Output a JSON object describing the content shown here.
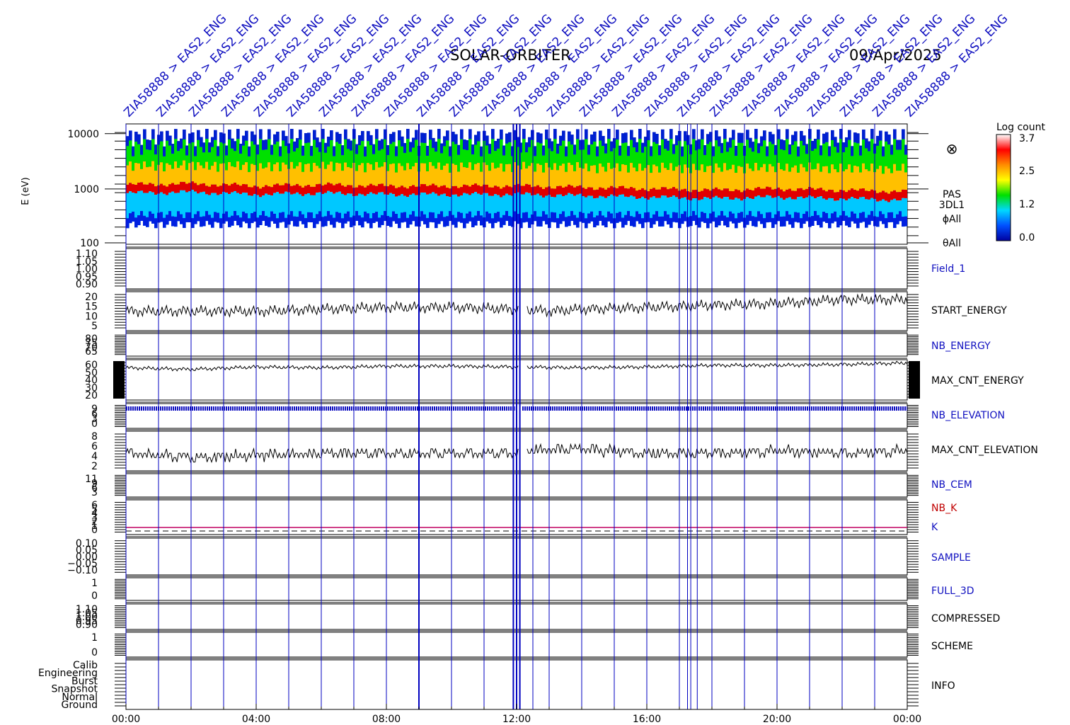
{
  "title": {
    "mission": "SOLAR-ORBITER",
    "date": "09/Apr/2025"
  },
  "colorbar": {
    "title": "Log count",
    "ticks": [
      "3.7",
      "2.5",
      "1.2",
      "0.0"
    ],
    "stops": [
      "#ffffff",
      "#ff0000",
      "#ff8c00",
      "#ffff00",
      "#00e000",
      "#00d8ff",
      "#0050ff",
      "#0000a0"
    ]
  },
  "marker": "⊗",
  "colors": {
    "axis": "#000000",
    "event_line": "#0000c0",
    "label_blue": "#1010c0",
    "label_red": "#c00000",
    "label_black": "#000000"
  },
  "event_labels": [
    "ZIA58888 > EAS2_ENG",
    "ZIA58888 > EAS2_ENG",
    "ZIA58888 > EAS2_ENG",
    "ZIA58888 > EAS2_ENG",
    "ZIA58888 > EAS2_ENG",
    "ZIA58888 > EAS2_ENG",
    "ZIA58888 > EAS2_ENG",
    "ZIA58888 > EAS2_ENG",
    "ZIA58888 > EAS2_ENG",
    "ZIA58888 > EAS2_ENG",
    "ZIA58888 > EAS2_ENG",
    "ZIA58888 > EAS2_ENG",
    "ZIA58888 > EAS2_ENG",
    "ZIA58888 > EAS2_ENG",
    "ZIA58888 > EAS2_ENG",
    "ZIA58888 > EAS2_ENG",
    "ZIA58888 > EAS2_ENG",
    "ZIA58888 > EAS2_ENG",
    "ZIA58888 > EAS2_ENG",
    "ZIA58888 > EAS2_ENG",
    "ZIA58888 > EAS2_ENG",
    "ZIA58888 > EAS2_ENG",
    "ZIA58888 > EAS2_ENG",
    "ZIA58888 > EAS2_ENG",
    "ZIA58888 > EAS2_ENG"
  ],
  "chart_data": {
    "type": "line",
    "x_axis": {
      "range": [
        "00:00",
        "24:00"
      ],
      "ticks": [
        "00:00",
        "04:00",
        "08:00",
        "12:00",
        "16:00",
        "20:00",
        "00:00"
      ],
      "minor_tick_hours": 1
    },
    "event_times_hours": [
      0,
      1,
      2,
      3,
      4,
      5,
      6,
      7,
      8,
      9,
      10,
      11,
      11.9,
      12.0,
      12.1,
      12.5,
      13,
      14,
      15,
      16,
      17,
      17.25,
      17.35,
      17.55,
      18,
      19,
      20,
      21,
      22,
      23
    ],
    "panels": [
      {
        "name": "spectrogram",
        "kind": "spectrogram",
        "ylabel": "E (eV)",
        "yscale": "log",
        "ylim": [
          100,
          15000
        ],
        "yticks": [
          "10000",
          "1000",
          "100"
        ],
        "right_labels": [
          "PAS",
          "3DL1",
          "ϕAll",
          "θAll"
        ],
        "right_color": "#000000",
        "peak_energy_ev_by_hour": [
          [
            0,
            1000
          ],
          [
            2,
            1050
          ],
          [
            4,
            950
          ],
          [
            6,
            1000
          ],
          [
            8,
            950
          ],
          [
            10,
            950
          ],
          [
            12,
            950
          ],
          [
            14,
            900
          ],
          [
            16,
            850
          ],
          [
            18,
            800
          ],
          [
            20,
            850
          ],
          [
            22,
            800
          ],
          [
            24,
            750
          ]
        ],
        "upper_edge_ev": 9000,
        "lower_edge_ev": 230
      },
      {
        "name": "Field_1",
        "kind": "empty",
        "yticks": [
          "1.10",
          "1.05",
          "1.00",
          "0.95",
          "0.90"
        ],
        "right_color": "#1010c0"
      },
      {
        "name": "START_ENERGY",
        "kind": "line",
        "ylim": [
          0,
          20
        ],
        "yticks": [
          "20",
          "15",
          "10",
          "5"
        ],
        "right_color": "#000000",
        "series": {
          "x": [
            0,
            2,
            4,
            6,
            8,
            10,
            12,
            13,
            14,
            16,
            18,
            20,
            22,
            24
          ],
          "y": [
            10,
            10,
            10,
            11,
            12,
            12,
            11,
            10,
            11,
            12,
            13,
            14,
            16,
            16
          ]
        }
      },
      {
        "name": "NB_ENERGY",
        "kind": "empty",
        "yticks": [
          "80",
          "75",
          "70",
          "65"
        ],
        "right_color": "#1010c0"
      },
      {
        "name": "MAX_CNT_ENERGY",
        "kind": "line",
        "ylim": [
          10,
          60
        ],
        "yticks": [
          "60",
          "50",
          "40",
          "30",
          "20"
        ],
        "right_color": "#000000",
        "series": {
          "x": [
            0,
            2,
            4,
            6,
            8,
            10,
            12,
            14,
            16,
            18,
            20,
            22,
            24
          ],
          "y": [
            50,
            48,
            51,
            50,
            52,
            52,
            51,
            50,
            51,
            53,
            53,
            54,
            56
          ]
        }
      },
      {
        "name": "NB_ELEVATION",
        "kind": "dots",
        "ylim": [
          0,
          9
        ],
        "yticks": [
          "9",
          "6",
          "3",
          "0"
        ],
        "right_color": "#1010c0",
        "series": {
          "y": 9
        }
      },
      {
        "name": "MAX_CNT_ELEVATION",
        "kind": "line",
        "ylim": [
          0,
          9
        ],
        "yticks": [
          "8",
          "6",
          "4",
          "2"
        ],
        "right_color": "#000000",
        "series": {
          "x": [
            0,
            2,
            4,
            6,
            8,
            10,
            12,
            13,
            14,
            16,
            18,
            20,
            22,
            24
          ],
          "y": [
            4,
            3,
            3.5,
            4,
            4,
            4,
            4,
            5,
            5,
            4,
            4,
            4.5,
            4,
            4.5
          ]
        }
      },
      {
        "name": "NB_CEM",
        "kind": "empty",
        "yticks": [
          "11",
          "9",
          "6",
          "3"
        ],
        "right_color": "#1010c0"
      },
      {
        "name": "NB_K",
        "kind": "k",
        "yticks": [
          "6",
          "5",
          "4",
          "3",
          "2",
          "1",
          "0"
        ],
        "right_labels": [
          "NB_K",
          "K"
        ],
        "right_colors": [
          "#c00000",
          "#1010c0"
        ],
        "series": {
          "NB_K": 1,
          "K": 0
        }
      },
      {
        "name": "SAMPLE",
        "kind": "empty",
        "yticks": [
          "0.10",
          "0.05",
          "0.00",
          "−0.05",
          "−0.10"
        ],
        "right_color": "#1010c0"
      },
      {
        "name": "FULL_3D",
        "kind": "empty",
        "yticks": [
          "1",
          "0"
        ],
        "right_color": "#1010c0"
      },
      {
        "name": "COMPRESSED",
        "kind": "empty",
        "yticks": [
          "1.10",
          "1.05",
          "1.00",
          "0.95",
          "0.90"
        ],
        "right_color": "#000000"
      },
      {
        "name": "SCHEME",
        "kind": "empty",
        "yticks": [
          "1",
          "0"
        ],
        "right_color": "#000000"
      },
      {
        "name": "INFO",
        "kind": "empty",
        "yticks": [
          "Calib",
          "Engineering",
          "Burst",
          "Snapshot",
          "Normal",
          "Ground"
        ],
        "right_color": "#000000"
      }
    ]
  }
}
